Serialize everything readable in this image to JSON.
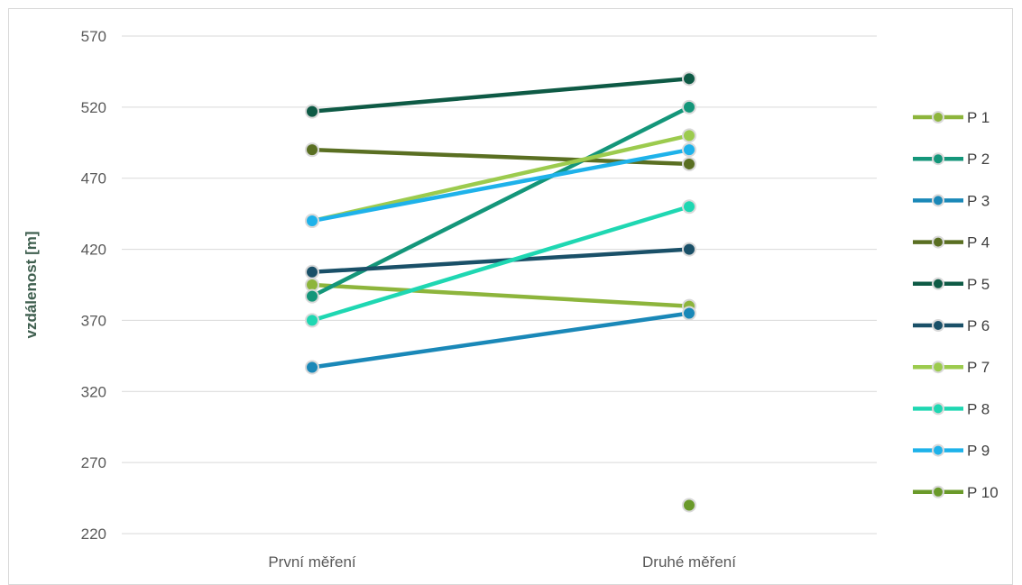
{
  "chart_data": {
    "type": "line",
    "categories": [
      "První měření",
      "Druhé měření"
    ],
    "ylabel": "vzdálenost [m]",
    "ylim": [
      220,
      570
    ],
    "yticks": [
      220,
      270,
      320,
      370,
      420,
      470,
      520,
      570
    ],
    "grid": true,
    "legend": "right",
    "series": [
      {
        "name": "P 1",
        "color": "#8db53c",
        "values": [
          395,
          380
        ]
      },
      {
        "name": "P 2",
        "color": "#14967a",
        "values": [
          387,
          520
        ]
      },
      {
        "name": "P 3",
        "color": "#1a88b8",
        "values": [
          337,
          375
        ]
      },
      {
        "name": "P 4",
        "color": "#5a6f22",
        "values": [
          490,
          480
        ]
      },
      {
        "name": "P 5",
        "color": "#0e5a45",
        "values": [
          517,
          540
        ]
      },
      {
        "name": "P 6",
        "color": "#1a5068",
        "values": [
          404,
          420
        ]
      },
      {
        "name": "P 7",
        "color": "#9ccb4e",
        "values": [
          440,
          500
        ]
      },
      {
        "name": "P 8",
        "color": "#1fd7b2",
        "values": [
          370,
          450
        ]
      },
      {
        "name": "P 9",
        "color": "#1eb2ea",
        "values": [
          440,
          490
        ]
      },
      {
        "name": "P 10",
        "color": "#6a9a2a",
        "values": [
          null,
          240
        ]
      }
    ]
  }
}
